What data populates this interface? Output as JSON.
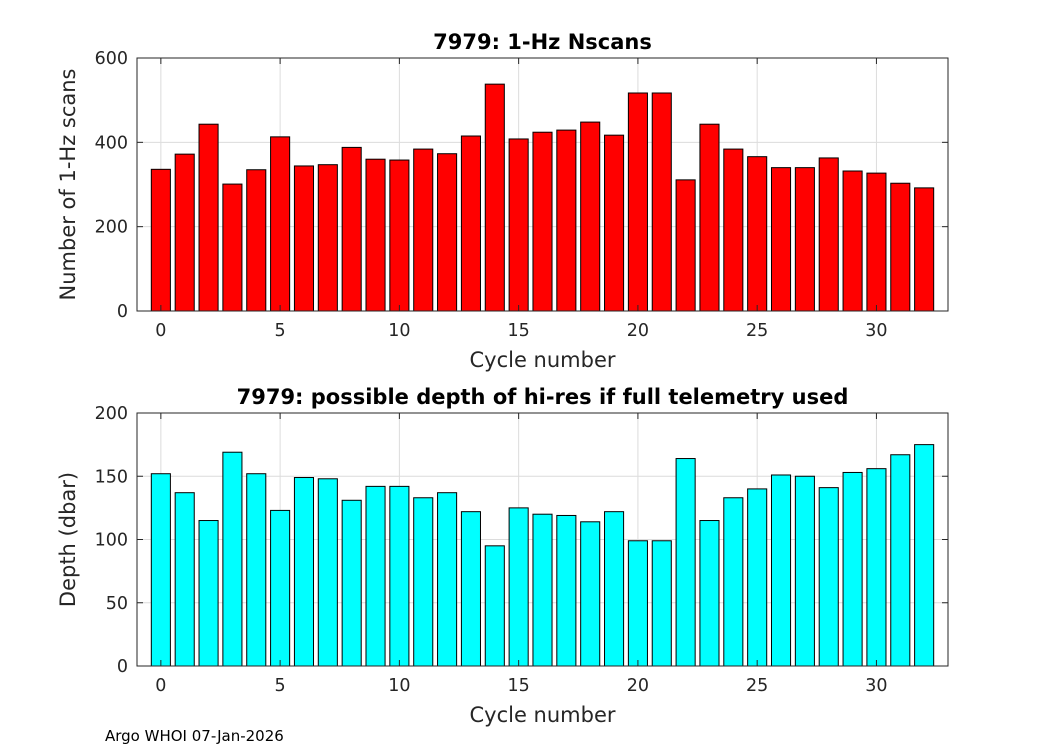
{
  "footer": "Argo WHOI 07-Jan-2026",
  "chart_data": [
    {
      "type": "bar",
      "title": "7979: 1-Hz Nscans",
      "xlabel": "Cycle number",
      "ylabel": "Number of 1-Hz scans",
      "color": "#ff0000",
      "xlim": [
        -1,
        33
      ],
      "ylim": [
        0,
        600
      ],
      "xticks": [
        0,
        5,
        10,
        15,
        20,
        25,
        30
      ],
      "yticks": [
        0,
        200,
        400,
        600
      ],
      "grid": true,
      "x": [
        0,
        1,
        2,
        3,
        4,
        5,
        6,
        7,
        8,
        9,
        10,
        11,
        12,
        13,
        14,
        15,
        16,
        17,
        18,
        19,
        20,
        21,
        22,
        23,
        24,
        25,
        26,
        27,
        28,
        29,
        30,
        31,
        32
      ],
      "values": [
        336,
        372,
        443,
        301,
        335,
        413,
        344,
        347,
        388,
        360,
        358,
        384,
        373,
        415,
        538,
        408,
        424,
        429,
        448,
        417,
        517,
        517,
        311,
        443,
        384,
        366,
        340,
        340,
        363,
        332,
        327,
        303,
        292
      ]
    },
    {
      "type": "bar",
      "title": "7979: possible depth of hi-res if full telemetry used",
      "xlabel": "Cycle number",
      "ylabel": "Depth (dbar)",
      "color": "#00ffff",
      "xlim": [
        -1,
        33
      ],
      "ylim": [
        0,
        200
      ],
      "xticks": [
        0,
        5,
        10,
        15,
        20,
        25,
        30
      ],
      "yticks": [
        0,
        50,
        100,
        150,
        200
      ],
      "grid": true,
      "x": [
        0,
        1,
        2,
        3,
        4,
        5,
        6,
        7,
        8,
        9,
        10,
        11,
        12,
        13,
        14,
        15,
        16,
        17,
        18,
        19,
        20,
        21,
        22,
        23,
        24,
        25,
        26,
        27,
        28,
        29,
        30,
        31,
        32
      ],
      "values": [
        152,
        137,
        115,
        169,
        152,
        123,
        149,
        148,
        131,
        142,
        142,
        133,
        137,
        122,
        95,
        125,
        120,
        119,
        114,
        122,
        99,
        99,
        164,
        115,
        133,
        140,
        151,
        150,
        141,
        153,
        156,
        167,
        175
      ]
    }
  ]
}
